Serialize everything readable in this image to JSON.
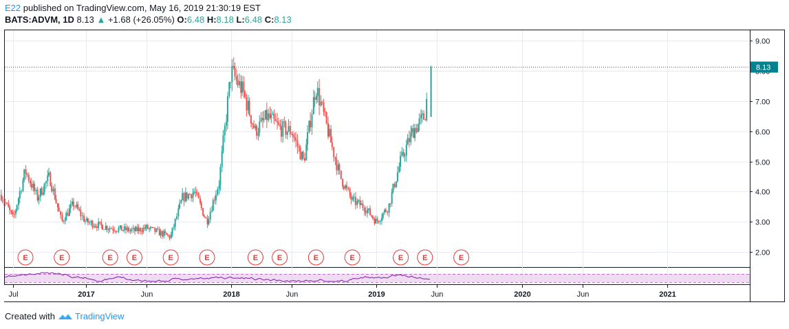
{
  "header": {
    "author": "E22",
    "published": "published on TradingView.com, May 16, 2019 21:30:19 EST",
    "symbol": "BATS:ADVM, 1D",
    "last": "8.13",
    "up_arrow": "▲",
    "change": "+1.68 (+26.05%)",
    "o_label": "O:",
    "o_value": "6.48",
    "h_label": "H:",
    "h_value": "8.18",
    "l_label": "L:",
    "l_value": "6.48",
    "c_label": "C:",
    "c_value": "8.13"
  },
  "footer": {
    "created_with": "Created with",
    "brand": "TradingView"
  },
  "colors": {
    "up": "#26a69a",
    "down": "#ef5350",
    "rsi_line": "#7b1fa2",
    "rsi_band": "#e1bee7",
    "price_line": "#00838f",
    "earnings": "#e53935",
    "grid": "#e6eaf0"
  },
  "chart_data": {
    "type": "candlestick",
    "symbol": "BATS:ADVM",
    "interval": "1D",
    "ylim": [
      1.5,
      9.35
    ],
    "y_ticks": [
      "2.00",
      "3.00",
      "4.00",
      "5.00",
      "6.00",
      "7.00",
      "8.00",
      "9.00"
    ],
    "x_tick_labels": [
      "Jul",
      "2017",
      "Jun",
      "2018",
      "Jun",
      "2019",
      "Jun",
      "2020",
      "Jun",
      "2021"
    ],
    "x_tick_dates": [
      "2016-07",
      "2017-01",
      "2017-06",
      "2018-01",
      "2018-06",
      "2019-01",
      "2019-06",
      "2020-01",
      "2020-06",
      "2021-01"
    ],
    "last_price": "8.13",
    "earnings_label": "E",
    "earnings_dates": [
      "2016-08",
      "2016-11",
      "2017-03",
      "2017-05",
      "2017-08",
      "2017-11",
      "2018-03",
      "2018-05",
      "2018-08",
      "2018-11",
      "2019-03",
      "2019-05",
      "2019-08"
    ],
    "price_series": [
      {
        "x": "2016-06",
        "close": 3.9
      },
      {
        "x": "2016-07",
        "close": 3.1
      },
      {
        "x": "2016-08",
        "close": 4.7
      },
      {
        "x": "2016-09",
        "close": 3.8
      },
      {
        "x": "2016-10",
        "close": 4.5
      },
      {
        "x": "2016-11",
        "close": 3.0
      },
      {
        "x": "2016-12",
        "close": 3.6
      },
      {
        "x": "2017-01",
        "close": 3.0
      },
      {
        "x": "2017-03",
        "close": 2.8
      },
      {
        "x": "2017-05",
        "close": 2.7
      },
      {
        "x": "2017-06",
        "close": 2.8
      },
      {
        "x": "2017-08",
        "close": 2.5
      },
      {
        "x": "2017-09",
        "close": 3.8
      },
      {
        "x": "2017-10",
        "close": 4.0
      },
      {
        "x": "2017-11",
        "close": 3.0
      },
      {
        "x": "2017-12",
        "close": 4.3
      },
      {
        "x": "2018-01",
        "close": 8.0
      },
      {
        "x": "2018-02",
        "close": 7.3
      },
      {
        "x": "2018-03",
        "close": 6.0
      },
      {
        "x": "2018-04",
        "close": 6.5
      },
      {
        "x": "2018-05",
        "close": 6.1
      },
      {
        "x": "2018-06",
        "close": 6.0
      },
      {
        "x": "2018-07",
        "close": 5.0
      },
      {
        "x": "2018-08",
        "close": 7.5
      },
      {
        "x": "2018-09",
        "close": 6.0
      },
      {
        "x": "2018-10",
        "close": 4.5
      },
      {
        "x": "2018-11",
        "close": 3.7
      },
      {
        "x": "2018-12",
        "close": 3.5
      },
      {
        "x": "2019-01",
        "close": 3.0
      },
      {
        "x": "2019-02",
        "close": 3.5
      },
      {
        "x": "2019-03",
        "close": 5.0
      },
      {
        "x": "2019-04",
        "close": 6.0
      },
      {
        "x": "2019-05",
        "close": 6.5
      },
      {
        "x": "2019-05-16",
        "close": 8.13
      }
    ]
  }
}
